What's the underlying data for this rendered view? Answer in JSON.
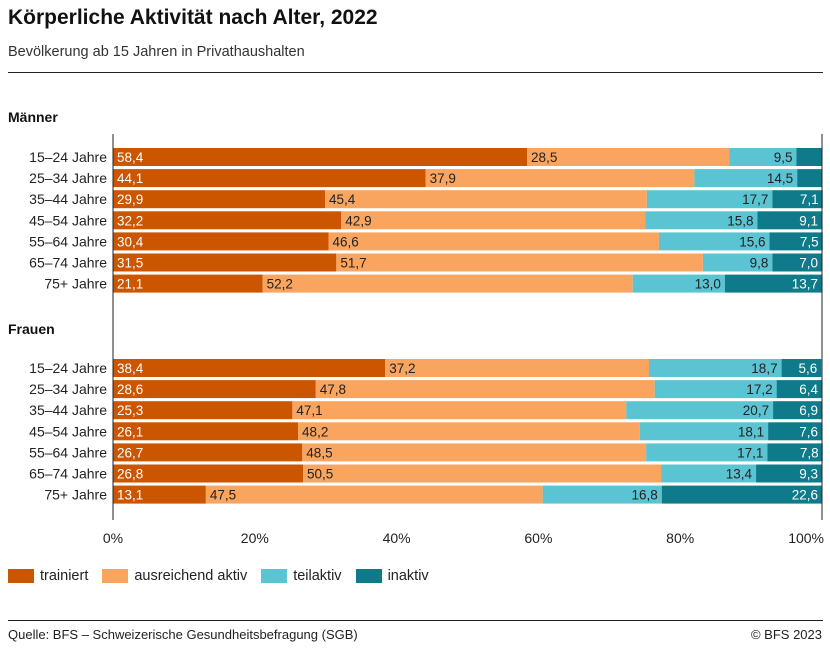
{
  "header": {
    "title": "Körperliche Aktivität nach Alter, 2022",
    "subtitle": "Bevölkerung ab 15 Jahren in Privathaushalten"
  },
  "footer": {
    "source": "Quelle: BFS – Schweizerische Gesundheitsbefragung (SGB)",
    "copyright": "© BFS 2023"
  },
  "colors": {
    "trainiert": "#cc5500",
    "ausreichend": "#f9a560",
    "teilaktiv": "#5bc4d2",
    "inaktiv": "#0e7a8a"
  },
  "chart_data": {
    "type": "bar",
    "orientation": "horizontal",
    "stacked": true,
    "title": "Körperliche Aktivität nach Alter, 2022",
    "subtitle": "Bevölkerung ab 15 Jahren in Privathaushalten",
    "xlim": [
      0,
      100
    ],
    "x_ticks": [
      "0%",
      "20%",
      "40%",
      "60%",
      "80%",
      "100%"
    ],
    "x_tick_values": [
      0,
      20,
      40,
      60,
      80,
      100
    ],
    "legend_position": "bottom-left",
    "series_names": [
      "trainiert",
      "ausreichend aktiv",
      "teilaktiv",
      "inaktiv"
    ],
    "categories": [
      "15–24 Jahre",
      "25–34 Jahre",
      "35–44 Jahre",
      "45–54 Jahre",
      "55–64 Jahre",
      "65–74 Jahre",
      "75+ Jahre"
    ],
    "groups": [
      {
        "name": "Männer",
        "series": [
          {
            "name": "trainiert",
            "values": [
              58.4,
              44.1,
              29.9,
              32.2,
              30.4,
              31.5,
              21.1
            ]
          },
          {
            "name": "ausreichend aktiv",
            "values": [
              28.5,
              37.9,
              45.4,
              42.9,
              46.6,
              51.7,
              52.2
            ]
          },
          {
            "name": "teilaktiv",
            "values": [
              9.5,
              14.5,
              17.7,
              15.8,
              15.6,
              9.8,
              13.0
            ]
          },
          {
            "name": "inaktiv",
            "values": [
              3.6,
              3.5,
              7.1,
              9.1,
              7.5,
              7.0,
              13.7
            ]
          }
        ],
        "labels": [
          [
            "58,4",
            "28,5",
            "9,5",
            null
          ],
          [
            "44,1",
            "37,9",
            "14,5",
            null
          ],
          [
            "29,9",
            "45,4",
            "17,7",
            "7,1"
          ],
          [
            "32,2",
            "42,9",
            "15,8",
            "9,1"
          ],
          [
            "30,4",
            "46,6",
            "15,6",
            "7,5"
          ],
          [
            "31,5",
            "51,7",
            "9,8",
            "7,0"
          ],
          [
            "21,1",
            "52,2",
            "13,0",
            "13,7"
          ]
        ]
      },
      {
        "name": "Frauen",
        "series": [
          {
            "name": "trainiert",
            "values": [
              38.4,
              28.6,
              25.3,
              26.1,
              26.7,
              26.8,
              13.1
            ]
          },
          {
            "name": "ausreichend aktiv",
            "values": [
              37.2,
              47.8,
              47.1,
              48.2,
              48.5,
              50.5,
              47.5
            ]
          },
          {
            "name": "teilaktiv",
            "values": [
              18.7,
              17.2,
              20.7,
              18.1,
              17.1,
              13.4,
              16.8
            ]
          },
          {
            "name": "inaktiv",
            "values": [
              5.6,
              6.4,
              6.9,
              7.6,
              7.8,
              9.3,
              22.6
            ]
          }
        ],
        "labels": [
          [
            "38,4",
            "37,2",
            "18,7",
            "5,6"
          ],
          [
            "28,6",
            "47,8",
            "17,2",
            "6,4"
          ],
          [
            "25,3",
            "47,1",
            "20,7",
            "6,9"
          ],
          [
            "26,1",
            "48,2",
            "18,1",
            "7,6"
          ],
          [
            "26,7",
            "48,5",
            "17,1",
            "7,8"
          ],
          [
            "26,8",
            "50,5",
            "13,4",
            "9,3"
          ],
          [
            "13,1",
            "47,5",
            "16,8",
            "22,6"
          ]
        ]
      }
    ]
  }
}
